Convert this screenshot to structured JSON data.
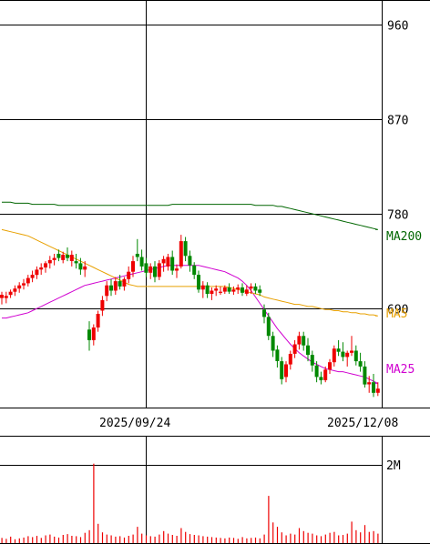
{
  "chart_data": {
    "type": "candlestick",
    "price_axis": {
      "ticks": [
        690,
        780,
        870,
        960
      ],
      "ylim": [
        596,
        983
      ]
    },
    "date_labels": [
      "2025/09/24",
      "2025/12/08"
    ],
    "volume_axis": {
      "ticks": [
        "2M"
      ],
      "ylim": [
        0,
        2500000
      ]
    },
    "grid": true,
    "colors": {
      "up": "#ee0000",
      "down": "#008800",
      "ma5": "#e8a000",
      "ma25": "#d000d0",
      "ma200": "#006600",
      "volume": "#ee0000",
      "grid": "#000000"
    },
    "ma_labels": {
      "ma200": "MA200",
      "ma5": "MA5",
      "ma25": "MA25"
    },
    "ohlc": [
      [
        700,
        706,
        694,
        703
      ],
      [
        700,
        706,
        695,
        702
      ],
      [
        703,
        708,
        700,
        706
      ],
      [
        706,
        712,
        702,
        709
      ],
      [
        709,
        715,
        705,
        712
      ],
      [
        712,
        718,
        708,
        714
      ],
      [
        714,
        722,
        711,
        719
      ],
      [
        719,
        726,
        715,
        722
      ],
      [
        722,
        730,
        718,
        727
      ],
      [
        727,
        733,
        722,
        729
      ],
      [
        729,
        735,
        724,
        733
      ],
      [
        733,
        740,
        728,
        736
      ],
      [
        736,
        742,
        731,
        738
      ],
      [
        742,
        746,
        735,
        738
      ],
      [
        736,
        744,
        733,
        741
      ],
      [
        741,
        748,
        735,
        738
      ],
      [
        735,
        745,
        730,
        741
      ],
      [
        735,
        742,
        728,
        733
      ],
      [
        733,
        738,
        722,
        727
      ],
      [
        727,
        735,
        720,
        730
      ],
      [
        670,
        678,
        650,
        660
      ],
      [
        660,
        675,
        655,
        672
      ],
      [
        672,
        688,
        668,
        685
      ],
      [
        688,
        702,
        683,
        698
      ],
      [
        702,
        716,
        697,
        712
      ],
      [
        712,
        718,
        702,
        707
      ],
      [
        707,
        720,
        703,
        716
      ],
      [
        716,
        722,
        708,
        711
      ],
      [
        711,
        720,
        707,
        718
      ],
      [
        718,
        730,
        714,
        725
      ],
      [
        725,
        740,
        720,
        735
      ],
      [
        742,
        756,
        735,
        739
      ],
      [
        739,
        746,
        726,
        730
      ],
      [
        733,
        738,
        720,
        724
      ],
      [
        724,
        733,
        718,
        730
      ],
      [
        730,
        735,
        715,
        720
      ],
      [
        720,
        736,
        717,
        733
      ],
      [
        733,
        740,
        725,
        737
      ],
      [
        730,
        742,
        726,
        739
      ],
      [
        739,
        745,
        722,
        726
      ],
      [
        726,
        732,
        719,
        728
      ],
      [
        730,
        760,
        728,
        754
      ],
      [
        754,
        758,
        735,
        740
      ],
      [
        740,
        745,
        725,
        731
      ],
      [
        731,
        734,
        718,
        722
      ],
      [
        722,
        726,
        705,
        708
      ],
      [
        708,
        716,
        700,
        712
      ],
      [
        712,
        715,
        700,
        704
      ],
      [
        704,
        710,
        698,
        707
      ],
      [
        707,
        712,
        702,
        709
      ],
      [
        705,
        711,
        703,
        706
      ],
      [
        706,
        712,
        704,
        710
      ],
      [
        710,
        714,
        704,
        706
      ],
      [
        706,
        711,
        703,
        708
      ],
      [
        708,
        713,
        704,
        710
      ],
      [
        710,
        714,
        702,
        705
      ],
      [
        704,
        712,
        702,
        708
      ],
      [
        709,
        714,
        704,
        711
      ],
      [
        711,
        714,
        704,
        707
      ],
      [
        708,
        712,
        702,
        705
      ],
      [
        689,
        694,
        676,
        682
      ],
      [
        682,
        686,
        660,
        664
      ],
      [
        664,
        668,
        644,
        650
      ],
      [
        651,
        655,
        634,
        640
      ],
      [
        640,
        644,
        618,
        623
      ],
      [
        625,
        640,
        620,
        637
      ],
      [
        637,
        650,
        632,
        647
      ],
      [
        647,
        660,
        643,
        656
      ],
      [
        656,
        668,
        651,
        664
      ],
      [
        664,
        668,
        650,
        655
      ],
      [
        655,
        662,
        640,
        646
      ],
      [
        646,
        650,
        630,
        636
      ],
      [
        636,
        640,
        620,
        625
      ],
      [
        625,
        630,
        618,
        622
      ],
      [
        622,
        635,
        620,
        632
      ],
      [
        632,
        642,
        628,
        639
      ],
      [
        639,
        655,
        635,
        652
      ],
      [
        652,
        660,
        645,
        649
      ],
      [
        649,
        658,
        640,
        644
      ],
      [
        644,
        650,
        635,
        648
      ],
      [
        648,
        664,
        645,
        650
      ],
      [
        650,
        655,
        636,
        640
      ],
      [
        640,
        648,
        630,
        635
      ],
      [
        635,
        640,
        615,
        618
      ],
      [
        618,
        626,
        610,
        620
      ],
      [
        620,
        628,
        606,
        610
      ],
      [
        610,
        620,
        607,
        614
      ]
    ],
    "volume": [
      120000,
      100000,
      150000,
      90000,
      110000,
      130000,
      160000,
      140000,
      170000,
      120000,
      180000,
      200000,
      150000,
      130000,
      190000,
      210000,
      170000,
      160000,
      140000,
      240000,
      300000,
      1850000,
      450000,
      250000,
      200000,
      180000,
      150000,
      160000,
      130000,
      170000,
      200000,
      380000,
      220000,
      180000,
      160000,
      150000,
      200000,
      280000,
      220000,
      190000,
      170000,
      350000,
      260000,
      210000,
      190000,
      180000,
      160000,
      150000,
      140000,
      130000,
      120000,
      110000,
      130000,
      120000,
      100000,
      140000,
      110000,
      120000,
      130000,
      110000,
      200000,
      1100000,
      480000,
      380000,
      250000,
      180000,
      220000,
      200000,
      350000,
      280000,
      240000,
      220000,
      180000,
      160000,
      200000,
      240000,
      260000,
      180000,
      190000,
      220000,
      500000,
      300000,
      250000,
      420000,
      260000,
      280000,
      220000
    ],
    "ma5": [
      765,
      764,
      763,
      762,
      761,
      760,
      759,
      757,
      755,
      753,
      751,
      749,
      747,
      745,
      743,
      741,
      739,
      737,
      735,
      733,
      731,
      729,
      727,
      725,
      723,
      721,
      719,
      717,
      715,
      713,
      712,
      711,
      711,
      711,
      711,
      711,
      711,
      711,
      711,
      711,
      711,
      711,
      711,
      711,
      711,
      711,
      711,
      711,
      711,
      711,
      711,
      711,
      710,
      709,
      708,
      707,
      706,
      705,
      704,
      703,
      701,
      700,
      699,
      698,
      697,
      696,
      695,
      694,
      694,
      693,
      692,
      692,
      691,
      690,
      689,
      689,
      688,
      688,
      687,
      687,
      686,
      686,
      685,
      685,
      684,
      684,
      683
    ],
    "ma25": [
      681,
      681,
      682,
      683,
      684,
      685,
      686,
      688,
      690,
      692,
      694,
      696,
      698,
      700,
      702,
      704,
      706,
      708,
      710,
      712,
      713,
      714,
      715,
      716,
      717,
      718,
      719,
      720,
      721,
      722,
      723,
      724,
      725,
      726,
      727,
      728,
      729,
      730,
      731,
      731,
      731,
      731,
      731,
      731,
      731,
      731,
      730,
      729,
      728,
      727,
      726,
      725,
      723,
      721,
      719,
      716,
      712,
      707,
      701,
      695,
      689,
      683,
      677,
      671,
      666,
      661,
      656,
      652,
      648,
      645,
      642,
      639,
      637,
      635,
      633,
      632,
      631,
      630,
      630,
      629,
      628,
      627,
      626,
      625,
      623,
      621,
      619
    ],
    "ma200": [
      791,
      791,
      791,
      790,
      790,
      790,
      790,
      789,
      789,
      789,
      789,
      789,
      789,
      788,
      788,
      788,
      788,
      788,
      788,
      788,
      788,
      788,
      788,
      788,
      788,
      788,
      788,
      788,
      788,
      788,
      788,
      788,
      788,
      788,
      788,
      788,
      788,
      788,
      788,
      789,
      789,
      789,
      789,
      789,
      789,
      789,
      789,
      789,
      789,
      789,
      789,
      789,
      789,
      789,
      789,
      789,
      789,
      789,
      788,
      788,
      788,
      788,
      788,
      787,
      787,
      786,
      785,
      784,
      783,
      782,
      781,
      780,
      779,
      778,
      777,
      776,
      775,
      774,
      773,
      772,
      771,
      770,
      769,
      768,
      767,
      766,
      765
    ]
  }
}
